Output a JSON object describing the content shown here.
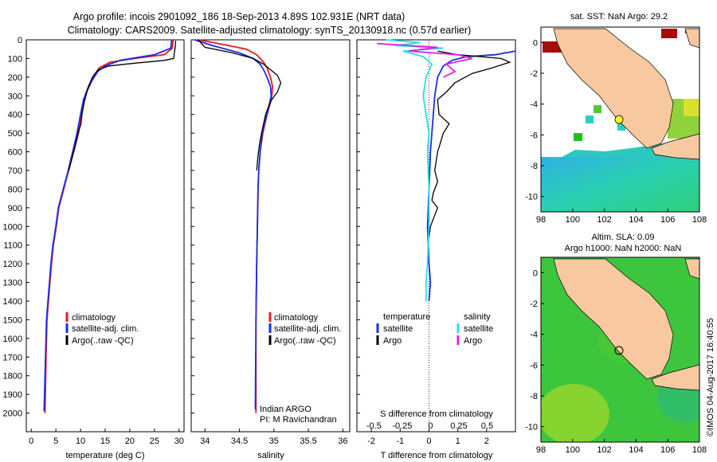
{
  "header": {
    "line1": "Argo profile: incois 2901092_186 18-Sep-2013 4.89S 102.931E (NRT data)",
    "line2": "Climatology: CARS2009. Satellite-adjusted climatology: synTS_20130918.nc (0.57d earlier)"
  },
  "colors": {
    "climatology": "#e8191a",
    "satellite": "#1a2ee6",
    "argo": "#000000",
    "satellite_salinity": "#25e0e8",
    "argo_salinity": "#e51ee5",
    "land": "#f8c9a0",
    "ocean_anom": "#38c838"
  },
  "depth_axis": {
    "ticks": [
      0,
      100,
      200,
      300,
      400,
      500,
      600,
      700,
      800,
      900,
      1000,
      1100,
      1200,
      1300,
      1400,
      1500,
      1600,
      1700,
      1800,
      1900,
      2000
    ],
    "range": [
      0,
      2100
    ]
  },
  "chart_data": [
    {
      "type": "line",
      "xlabel": "temperature (deg C)",
      "xlim": [
        -1,
        31
      ],
      "xticks": [
        0,
        5,
        10,
        15,
        20,
        25,
        30
      ],
      "legend": [
        "climatology",
        "satellite-adj. clim.",
        "Argo(..raw -QC)"
      ],
      "series": [
        {
          "key": "climatology",
          "x": [
            28.8,
            28.6,
            27,
            21,
            16,
            13.8,
            12.5,
            11.6,
            10.9,
            10.2,
            9.6,
            8.6,
            7.6,
            6.6,
            5.6,
            5.1,
            4.5,
            4.1,
            3.8,
            3.5,
            3.2,
            3.0,
            2.8
          ],
          "y": [
            0,
            45,
            80,
            100,
            120,
            150,
            200,
            250,
            300,
            400,
            500,
            600,
            700,
            800,
            900,
            1000,
            1100,
            1200,
            1300,
            1400,
            1500,
            1700,
            2000
          ]
        },
        {
          "key": "satellite",
          "x": [
            28.5,
            28.3,
            25,
            18,
            15,
            13.5,
            12.3,
            11.4,
            10.6,
            10.0,
            9.3,
            8.4,
            7.5,
            6.5,
            5.5,
            5.0,
            4.4,
            4.0,
            3.7,
            3.4,
            3.1,
            2.9,
            2.6
          ],
          "y": [
            0,
            45,
            80,
            110,
            140,
            170,
            220,
            270,
            320,
            400,
            500,
            600,
            700,
            800,
            900,
            1000,
            1100,
            1200,
            1300,
            1400,
            1500,
            1700,
            1990
          ]
        },
        {
          "key": "argo",
          "x": [
            29.3,
            29.2,
            29.0,
            28.9,
            27,
            21,
            15.8,
            13.6,
            12.4,
            11.5,
            10.8,
            10.3,
            10.1,
            9.5,
            9.0,
            8.4,
            7.6
          ],
          "y": [
            5,
            40,
            80,
            100,
            110,
            125,
            140,
            160,
            200,
            260,
            330,
            400,
            450,
            500,
            560,
            620,
            700
          ]
        }
      ]
    },
    {
      "type": "line",
      "xlabel": "salinity",
      "xlim": [
        33.8,
        36.1
      ],
      "xticks": [
        34,
        34.5,
        35,
        35.5,
        36
      ],
      "legend": [
        "climatology",
        "satellite-adj. clim.",
        "Argo(..raw -QC)"
      ],
      "annotations": [
        "Indian ARGO",
        "PI: M Ravichandran"
      ],
      "series": [
        {
          "key": "climatology",
          "x": [
            33.9,
            34.2,
            34.6,
            34.75,
            34.85,
            34.9,
            34.95,
            34.98,
            34.97,
            34.94,
            34.9,
            34.87,
            34.84,
            34.8,
            34.78,
            34.77,
            34.76,
            34.75,
            34.74,
            34.74
          ],
          "y": [
            0,
            20,
            50,
            80,
            120,
            150,
            200,
            250,
            300,
            350,
            400,
            450,
            500,
            600,
            700,
            800,
            1000,
            1200,
            1500,
            2000
          ]
        },
        {
          "key": "satellite",
          "x": [
            33.85,
            34.1,
            34.5,
            34.7,
            34.8,
            34.85,
            34.9,
            34.95,
            34.96,
            34.93,
            34.9,
            34.86,
            34.83,
            34.8,
            34.78,
            34.77,
            34.76,
            34.75,
            34.74,
            34.73
          ],
          "y": [
            0,
            30,
            70,
            100,
            130,
            160,
            200,
            250,
            300,
            350,
            400,
            450,
            500,
            600,
            700,
            800,
            1000,
            1200,
            1500,
            1980
          ]
        },
        {
          "key": "argo",
          "x": [
            33.9,
            34.0,
            34.4,
            34.7,
            34.85,
            34.95,
            35.05,
            35.1,
            35.05,
            34.97,
            34.92,
            34.88,
            34.85,
            34.82,
            34.79,
            34.77,
            34.75
          ],
          "y": [
            0,
            40,
            70,
            100,
            130,
            160,
            190,
            230,
            280,
            320,
            360,
            400,
            450,
            500,
            560,
            620,
            700
          ]
        }
      ]
    },
    {
      "type": "line",
      "title": "S difference from climatology",
      "xlabel": "T difference from climatology",
      "xlim": [
        -2.5,
        3.0
      ],
      "xticks": [
        -2,
        -1,
        0,
        1,
        2
      ],
      "s_ticks": [
        "-0.5",
        "-0.25",
        "0",
        "0.25",
        "0.5"
      ],
      "legend_heads": [
        "temperature",
        "salinity"
      ],
      "legend": [
        "satellite",
        "Argo",
        "satellite",
        "Argo"
      ],
      "series": [
        {
          "key": "satellite",
          "x": [
            3.0,
            2.3,
            1.3,
            0.8,
            0.5,
            0.3,
            0.2,
            0.15,
            0.1,
            0.05,
            0.0,
            -0.05,
            0.0,
            0.05,
            0.0
          ],
          "y": [
            60,
            80,
            90,
            110,
            140,
            200,
            300,
            400,
            500,
            600,
            800,
            1000,
            1200,
            1300,
            1400
          ]
        },
        {
          "key": "argo",
          "x": [
            0.3,
            1.0,
            2.5,
            2.8,
            2.2,
            1.5,
            0.9,
            0.6,
            0.3,
            0.35,
            0.7,
            0.5,
            0.4,
            0.3,
            0.25,
            0.2,
            0.3,
            0.15,
            0.1,
            0.3,
            0.2,
            0.05,
            0.0
          ],
          "y": [
            60,
            80,
            100,
            120,
            150,
            180,
            230,
            280,
            320,
            400,
            450,
            500,
            550,
            600,
            650,
            700,
            760,
            820,
            860,
            900,
            940,
            1000,
            1060
          ]
        },
        {
          "key": "satellite_salinity",
          "x": [
            -1.5,
            -0.3,
            -1.2,
            0.5,
            -0.9,
            -0.2,
            0.1,
            -0.1,
            -0.2,
            -0.1,
            0.0,
            -0.05,
            0.0,
            0.0,
            -0.05,
            -0.1,
            -0.1
          ],
          "y": [
            0,
            15,
            30,
            45,
            60,
            90,
            130,
            200,
            300,
            400,
            500,
            600,
            800,
            1000,
            1200,
            1300,
            1400
          ]
        },
        {
          "key": "argo_salinity",
          "x": [
            -1.8,
            0.3,
            -0.7,
            1.0,
            1.5,
            0.6,
            0.9,
            0.5
          ],
          "y": [
            20,
            40,
            60,
            80,
            100,
            130,
            170,
            200
          ]
        }
      ]
    }
  ],
  "maps": [
    {
      "title": "sat. SST: NaN Argo: 29.2",
      "xticks": [
        "98",
        "100",
        "102",
        "104",
        "106",
        "108"
      ],
      "yticks": [
        "0",
        "-2",
        "-4",
        "-6",
        "-8",
        "-10"
      ]
    },
    {
      "title_line1": "Altim. SLA: 0.09",
      "title_line2": "Argo h1000: NaN h2000: NaN",
      "xticks": [
        "98",
        "100",
        "102",
        "104",
        "106",
        "108"
      ],
      "yticks": [
        "0",
        "-2",
        "-4",
        "-6",
        "-8",
        "-10"
      ]
    }
  ],
  "watermark": "©IMOS 04-Aug-2017 16:40:55"
}
